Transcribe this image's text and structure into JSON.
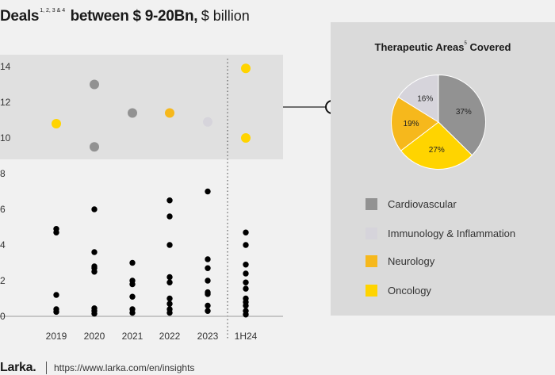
{
  "header": {
    "title_bold_1": "Deals",
    "title_sup": "1, 2, 3 & 4",
    "title_bold_2": "between $ 9-20Bn,",
    "title_unit": "$ billion"
  },
  "chart_data": [
    {
      "type": "scatter",
      "categories": [
        "2019",
        "2020",
        "2021",
        "2022",
        "2023",
        "1H24"
      ],
      "ylim": [
        0,
        14
      ],
      "yticks": [
        0,
        2,
        4,
        6,
        8,
        10,
        12,
        14
      ],
      "grid": false,
      "highlight_band": [
        8.8,
        15
      ],
      "series": [
        {
          "color": "#000000",
          "points": [
            {
              "x": "2019",
              "y": 0.25
            },
            {
              "x": "2019",
              "y": 0.4
            },
            {
              "x": "2019",
              "y": 1.2
            },
            {
              "x": "2019",
              "y": 4.7
            },
            {
              "x": "2019",
              "y": 4.9
            },
            {
              "x": "2020",
              "y": 0.15
            },
            {
              "x": "2020",
              "y": 0.3
            },
            {
              "x": "2020",
              "y": 0.45
            },
            {
              "x": "2020",
              "y": 2.5
            },
            {
              "x": "2020",
              "y": 2.7
            },
            {
              "x": "2020",
              "y": 2.8
            },
            {
              "x": "2020",
              "y": 3.6
            },
            {
              "x": "2020",
              "y": 6.0
            },
            {
              "x": "2021",
              "y": 0.2
            },
            {
              "x": "2021",
              "y": 0.4
            },
            {
              "x": "2021",
              "y": 1.1
            },
            {
              "x": "2021",
              "y": 1.8
            },
            {
              "x": "2021",
              "y": 2.0
            },
            {
              "x": "2021",
              "y": 3.0
            },
            {
              "x": "2022",
              "y": 0.2
            },
            {
              "x": "2022",
              "y": 0.4
            },
            {
              "x": "2022",
              "y": 0.7
            },
            {
              "x": "2022",
              "y": 1.0
            },
            {
              "x": "2022",
              "y": 1.9
            },
            {
              "x": "2022",
              "y": 2.2
            },
            {
              "x": "2022",
              "y": 4.0
            },
            {
              "x": "2022",
              "y": 5.6
            },
            {
              "x": "2022",
              "y": 6.5
            },
            {
              "x": "2023",
              "y": 0.3
            },
            {
              "x": "2023",
              "y": 0.6
            },
            {
              "x": "2023",
              "y": 1.25
            },
            {
              "x": "2023",
              "y": 1.35
            },
            {
              "x": "2023",
              "y": 2.0
            },
            {
              "x": "2023",
              "y": 2.7
            },
            {
              "x": "2023",
              "y": 3.2
            },
            {
              "x": "2023",
              "y": 7.0
            },
            {
              "x": "1H24",
              "y": 0.1
            },
            {
              "x": "1H24",
              "y": 0.3
            },
            {
              "x": "1H24",
              "y": 0.6
            },
            {
              "x": "1H24",
              "y": 0.8
            },
            {
              "x": "1H24",
              "y": 1.0
            },
            {
              "x": "1H24",
              "y": 1.55
            },
            {
              "x": "1H24",
              "y": 1.9
            },
            {
              "x": "1H24",
              "y": 2.4
            },
            {
              "x": "1H24",
              "y": 2.9
            },
            {
              "x": "1H24",
              "y": 4.0
            },
            {
              "x": "1H24",
              "y": 4.7
            }
          ]
        },
        {
          "color": "#929292",
          "points": [
            {
              "x": "2020",
              "y": 13.0
            },
            {
              "x": "2020",
              "y": 9.5
            },
            {
              "x": "2021",
              "y": 11.4
            }
          ]
        },
        {
          "color": "#ffd400",
          "points": [
            {
              "x": "2019",
              "y": 10.8
            },
            {
              "x": "1H24",
              "y": 13.9
            },
            {
              "x": "1H24",
              "y": 10.0
            }
          ]
        },
        {
          "color": "#f6b81c",
          "points": [
            {
              "x": "2022",
              "y": 11.4
            }
          ]
        },
        {
          "color": "#d6d4db",
          "points": [
            {
              "x": "2023",
              "y": 10.9
            }
          ]
        }
      ]
    },
    {
      "type": "pie",
      "title": "Therapeutic Areas",
      "title_sup": "5",
      "title_suffix": "Covered",
      "slices": [
        {
          "label": "Cardiovascular",
          "value": 37,
          "text": "37%",
          "color": "#929292"
        },
        {
          "label": "Oncology",
          "value": 27,
          "text": "27%",
          "color": "#ffd400"
        },
        {
          "label": "Neurology",
          "value": 19,
          "text": "19%",
          "color": "#f6b81c"
        },
        {
          "label": "Immunology & Inflammation",
          "value": 16,
          "text": "16%",
          "color": "#d6d4db"
        }
      ],
      "legend": [
        "Cardiovascular",
        "Immunology & Inflammation",
        "Neurology",
        "Oncology"
      ]
    }
  ],
  "footer": {
    "logo": "Larka.",
    "url": "https://www.larka.com/en/insights"
  }
}
